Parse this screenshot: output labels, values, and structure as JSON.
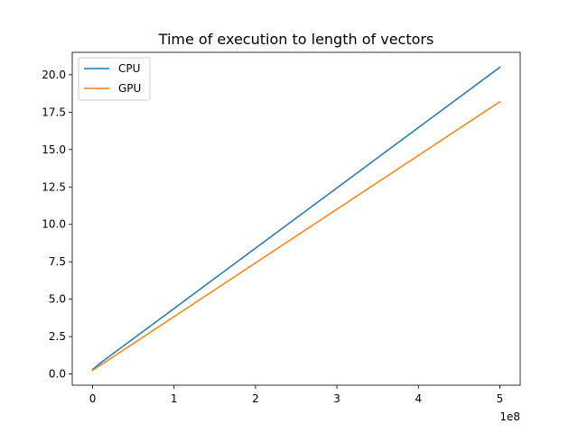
{
  "chart_data": {
    "type": "line",
    "title": "Time of execution to length of vectors",
    "xlabel": "",
    "ylabel": "",
    "x_offset_text": "1e8",
    "xlim": [
      -0.25,
      5.25
    ],
    "ylim": [
      -0.75,
      21.5
    ],
    "x_ticks": [
      0,
      1,
      2,
      3,
      4,
      5
    ],
    "x_tick_labels": [
      "0",
      "1",
      "2",
      "3",
      "4",
      "5"
    ],
    "y_ticks": [
      0.0,
      2.5,
      5.0,
      7.5,
      10.0,
      12.5,
      15.0,
      17.5,
      20.0
    ],
    "y_tick_labels": [
      "0.0",
      "2.5",
      "5.0",
      "7.5",
      "10.0",
      "12.5",
      "15.0",
      "17.5",
      "20.0"
    ],
    "grid": false,
    "legend_position": "top-left",
    "series": [
      {
        "name": "CPU",
        "color": "#1f77b4",
        "x": [
          0.0,
          0.1,
          5.0
        ],
        "y": [
          0.3,
          0.75,
          20.5
        ]
      },
      {
        "name": "GPU",
        "color": "#ff7f0e",
        "x": [
          0.0,
          0.1,
          5.0
        ],
        "y": [
          0.25,
          0.6,
          18.2
        ]
      }
    ]
  }
}
